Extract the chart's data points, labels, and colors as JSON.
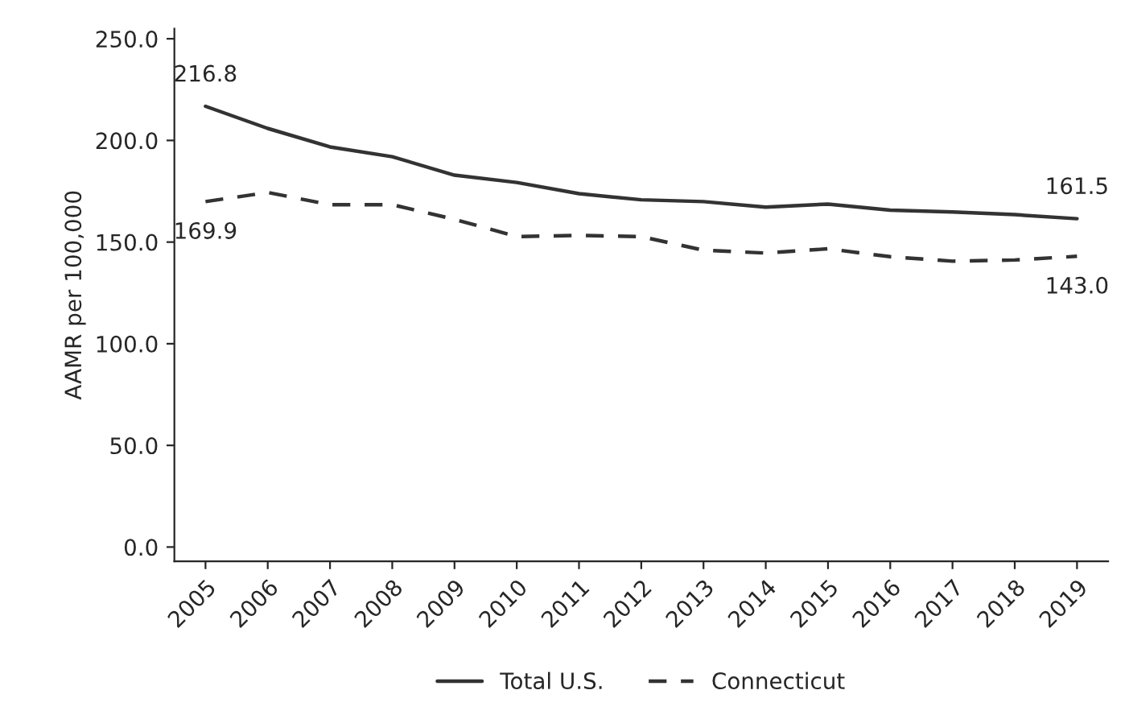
{
  "chart_data": {
    "type": "line",
    "ylabel": "AAMR per 100,000",
    "categories": [
      "2005",
      "2006",
      "2007",
      "2008",
      "2009",
      "2010",
      "2011",
      "2012",
      "2013",
      "2014",
      "2015",
      "2016",
      "2017",
      "2018",
      "2019"
    ],
    "series": [
      {
        "name": "Total U.S.",
        "color": "#333333",
        "line_style": "solid",
        "values": [
          216.8,
          205.9,
          196.8,
          192.0,
          182.9,
          179.3,
          173.8,
          170.8,
          169.9,
          167.2,
          168.7,
          165.7,
          164.8,
          163.5,
          161.5
        ],
        "value_labels": [
          "216.8",
          null,
          null,
          null,
          null,
          null,
          null,
          null,
          null,
          null,
          null,
          null,
          null,
          null,
          "161.5"
        ]
      },
      {
        "name": "Connecticut",
        "color": "#333333",
        "line_style": "dashed",
        "values": [
          169.9,
          174.4,
          168.4,
          168.4,
          161.2,
          152.7,
          153.3,
          152.7,
          146.0,
          144.6,
          146.7,
          142.8,
          140.6,
          141.2,
          143.0
        ],
        "value_labels": [
          "169.9",
          null,
          null,
          null,
          null,
          null,
          null,
          null,
          null,
          null,
          null,
          null,
          null,
          null,
          "143.0"
        ]
      }
    ],
    "ylim": [
      -7,
      255
    ],
    "yticks": [
      {
        "value": 0,
        "label": "0.0"
      },
      {
        "value": 50,
        "label": "50.0"
      },
      {
        "value": 100,
        "label": "100.0"
      },
      {
        "value": 150,
        "label": "150.0"
      },
      {
        "value": 200,
        "label": "200.0"
      },
      {
        "value": 250,
        "label": "250.0"
      }
    ],
    "grid": false,
    "legend": "bottom",
    "marker": "none"
  }
}
